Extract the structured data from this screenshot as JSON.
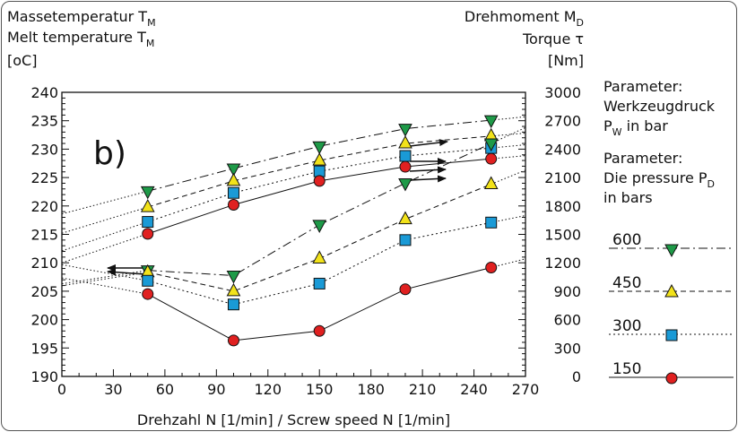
{
  "chart_data": {
    "type": "line",
    "panel_label": "b)",
    "left_axis": {
      "title_de": "Massetemperatur T",
      "title_en": "Melt temperature T",
      "subscript": "M",
      "unit": "[oC]",
      "range": [
        190,
        240
      ],
      "ticks": [
        "190",
        "195",
        "200",
        "205",
        "210",
        "215",
        "220",
        "225",
        "230",
        "235",
        "240"
      ]
    },
    "right_axis": {
      "title_de": "Drehmoment M",
      "title_de_subscript": "D",
      "title_en": "Torque τ",
      "unit": "[Nm]",
      "range": [
        0,
        3000
      ],
      "ticks": [
        "0",
        "300",
        "600",
        "900",
        "1200",
        "1500",
        "1800",
        "2100",
        "2400",
        "2700",
        "3000"
      ]
    },
    "x_axis": {
      "label": "Drehzahl N [1/min] / Screw speed N [1/min]",
      "range": [
        0,
        270
      ],
      "ticks": [
        "0",
        "30",
        "60",
        "90",
        "120",
        "150",
        "180",
        "210",
        "240",
        "270"
      ]
    },
    "x": [
      50,
      100,
      150,
      200,
      250
    ],
    "series": [
      {
        "name": "600",
        "quantity": "melt temperature",
        "axis": "left",
        "marker": "triangle-down",
        "color": "#1e9a48",
        "line": "dashdot",
        "values": [
          222.6,
          226.6,
          230.5,
          233.6,
          235.1
        ]
      },
      {
        "name": "450",
        "quantity": "melt temperature",
        "axis": "left",
        "marker": "triangle-up",
        "color": "#f2e21a",
        "line": "dashed",
        "values": [
          219.8,
          224.4,
          228.0,
          231.0,
          232.3
        ]
      },
      {
        "name": "300",
        "quantity": "melt temperature",
        "axis": "left",
        "marker": "square",
        "color": "#1a9ad6",
        "line": "dotted",
        "values": [
          217.2,
          222.3,
          226.1,
          228.8,
          230.2
        ]
      },
      {
        "name": "150",
        "quantity": "melt temperature",
        "axis": "left",
        "marker": "circle",
        "color": "#e02020",
        "line": "solid",
        "values": [
          215.1,
          220.2,
          224.4,
          226.9,
          228.3
        ]
      },
      {
        "name": "600",
        "quantity": "torque",
        "axis": "right",
        "marker": "triangle-down",
        "color": "#1e9a48",
        "line": "dashdot",
        "values": [
          1120,
          1065,
          1600,
          2040,
          2460
        ]
      },
      {
        "name": "450",
        "quantity": "torque",
        "axis": "right",
        "marker": "triangle-up",
        "color": "#f2e21a",
        "line": "dashed",
        "values": [
          1100,
          900,
          1245,
          1660,
          2030
        ]
      },
      {
        "name": "300",
        "quantity": "torque",
        "axis": "right",
        "marker": "square",
        "color": "#1a9ad6",
        "line": "dotted",
        "values": [
          1010,
          760,
          980,
          1440,
          1625
        ]
      },
      {
        "name": "150",
        "quantity": "torque",
        "axis": "right",
        "marker": "circle",
        "color": "#e02020",
        "line": "solid",
        "values": [
          870,
          380,
          480,
          920,
          1150
        ]
      }
    ],
    "legend": {
      "heading_de": "Parameter:",
      "text_de_1": "Werkzeugdruck",
      "text_de_2": "P",
      "text_de_2_sub": "W",
      "text_de_2_suffix": " in bar",
      "heading_en": "Parameter:",
      "text_en_1": "Die pressure P",
      "text_en_1_sub": "D",
      "text_en_2": "in bars",
      "position": "right"
    },
    "grid": false
  }
}
